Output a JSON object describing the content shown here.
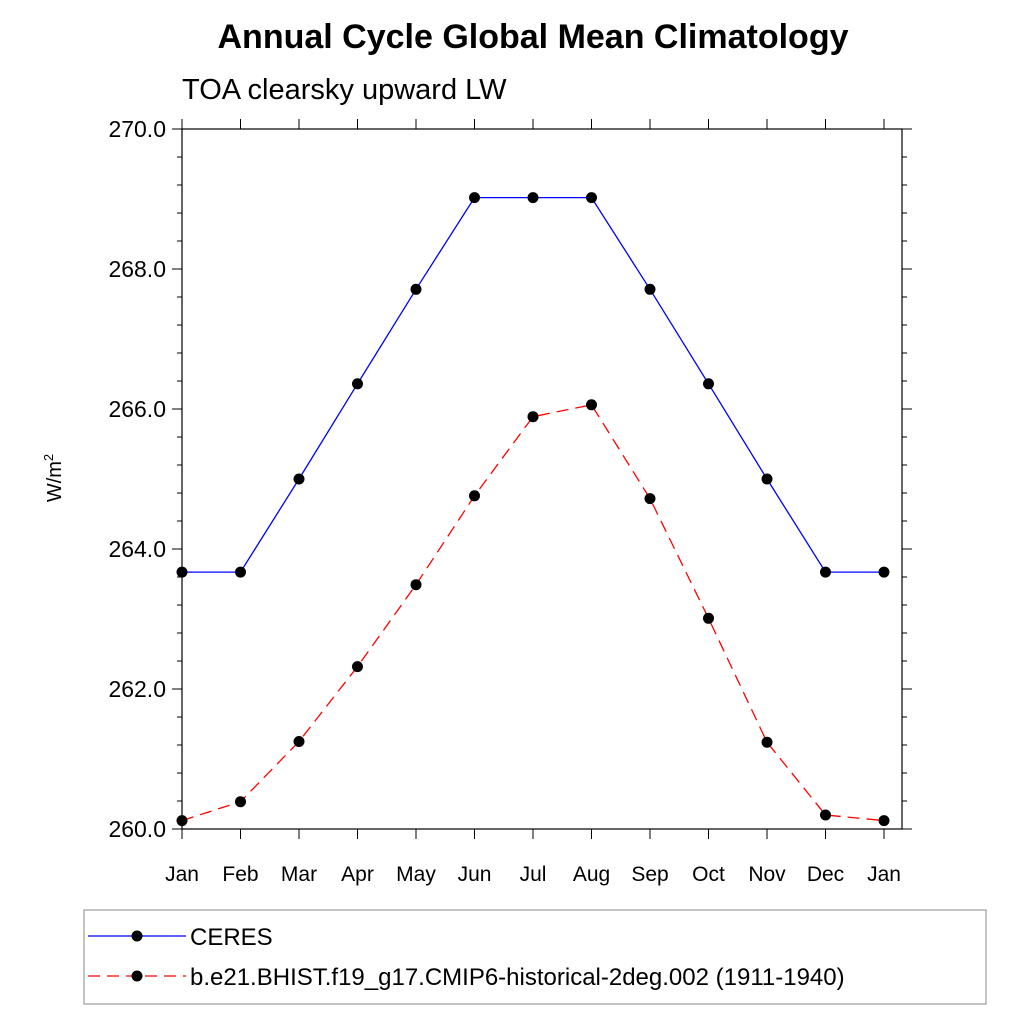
{
  "chart_data": {
    "type": "line",
    "title": "Annual Cycle Global Mean Climatology",
    "subtitle": "TOA clearsky upward LW",
    "ylabel": "W/m",
    "ylabel_sup": "2",
    "xlabel": "",
    "categories": [
      "Jan",
      "Feb",
      "Mar",
      "Apr",
      "May",
      "Jun",
      "Jul",
      "Aug",
      "Sep",
      "Oct",
      "Nov",
      "Dec",
      "Jan"
    ],
    "ylim": [
      260.0,
      270.0
    ],
    "yticks": [
      "260.0",
      "262.0",
      "264.0",
      "266.0",
      "268.0",
      "270.0"
    ],
    "grid": false,
    "legend_position": "bottom",
    "series": [
      {
        "name": "CERES",
        "color": "#0000ff",
        "style": "solid",
        "marker": "filled-circle",
        "values": [
          263.67,
          263.67,
          265.0,
          266.36,
          267.71,
          269.02,
          269.02,
          269.02,
          267.71,
          266.36,
          265.0,
          263.67,
          263.67
        ]
      },
      {
        "name": "b.e21.BHIST.f19_g17.CMIP6-historical-2deg.002 (1911-1940)",
        "color": "#ff0000",
        "style": "dashed",
        "marker": "filled-circle",
        "values": [
          260.12,
          260.39,
          261.25,
          262.32,
          263.49,
          264.76,
          265.89,
          266.06,
          264.72,
          263.01,
          261.24,
          260.2,
          260.12
        ]
      }
    ]
  }
}
